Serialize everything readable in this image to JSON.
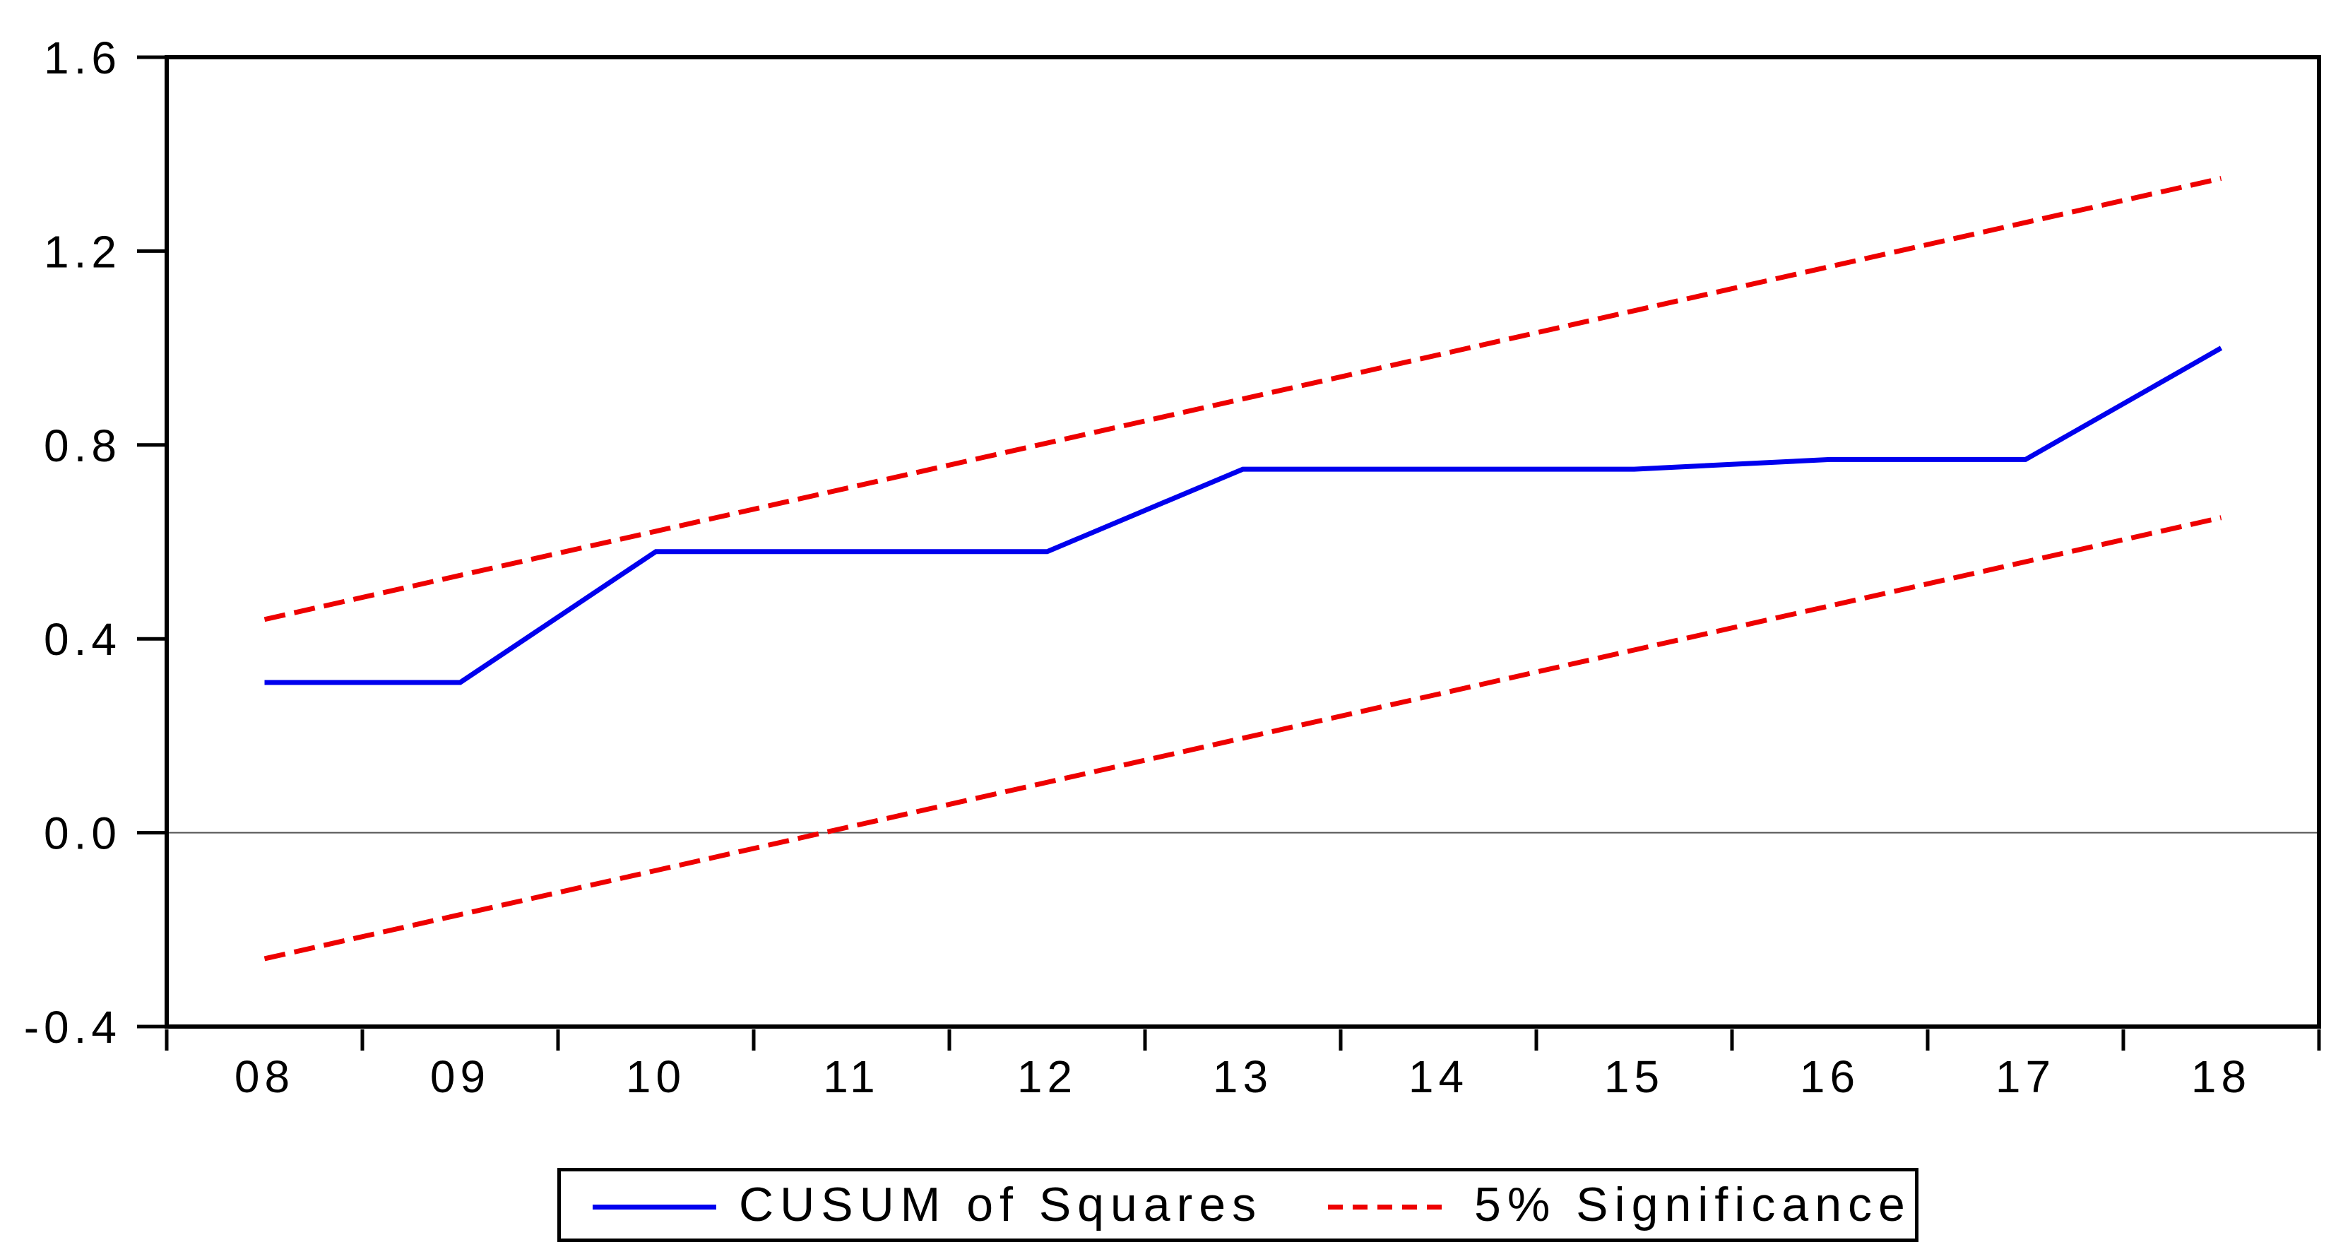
{
  "chart_data": {
    "type": "line",
    "title": "",
    "xlabel": "",
    "ylabel": "",
    "xlim": [
      7.5,
      18.5
    ],
    "ylim": [
      -0.4,
      1.6
    ],
    "grid": "zero-line-only",
    "zero_line": 0.0,
    "x_values": [
      8,
      9,
      10,
      11,
      12,
      13,
      14,
      15,
      16,
      17,
      18
    ],
    "x_tick_labels": [
      "08",
      "09",
      "10",
      "11",
      "12",
      "13",
      "14",
      "15",
      "16",
      "17",
      "18"
    ],
    "x_boundary_ticks": [
      7.5,
      8.5,
      9.5,
      10.5,
      11.5,
      12.5,
      13.5,
      14.5,
      15.5,
      16.5,
      17.5,
      18.5
    ],
    "y_ticks": [
      -0.4,
      0.0,
      0.4,
      0.8,
      1.2,
      1.6
    ],
    "y_tick_labels": [
      "-0.4",
      "0.0",
      "0.4",
      "0.8",
      "1.2",
      "1.6"
    ],
    "series": [
      {
        "name": "CUSUM of Squares",
        "style": "solid",
        "color": "#0000EE",
        "values": [
          0.31,
          0.31,
          0.58,
          0.58,
          0.58,
          0.75,
          0.75,
          0.75,
          0.77,
          0.77,
          1.0
        ]
      },
      {
        "name": "5% Significance (upper bound)",
        "style": "dashed",
        "color": "#EE0000",
        "values": [
          0.44,
          0.531,
          0.622,
          0.713,
          0.804,
          0.895,
          0.986,
          1.077,
          1.168,
          1.259,
          1.35
        ]
      },
      {
        "name": "5% Significance (lower bound)",
        "style": "dashed",
        "color": "#EE0000",
        "values": [
          -0.26,
          -0.169,
          -0.078,
          0.013,
          0.104,
          0.195,
          0.286,
          0.377,
          0.468,
          0.559,
          0.65
        ]
      }
    ],
    "legend_position": "bottom",
    "legend": [
      {
        "label": "CUSUM of Squares",
        "color": "#0000EE",
        "style": "solid"
      },
      {
        "label": "5% Significance",
        "color": "#EE0000",
        "style": "dashed"
      }
    ]
  },
  "colors": {
    "cusum_line": "#0000EE",
    "significance_line": "#EE0000",
    "axis": "#000000",
    "zero_line": "#555555",
    "background": "#ffffff"
  }
}
